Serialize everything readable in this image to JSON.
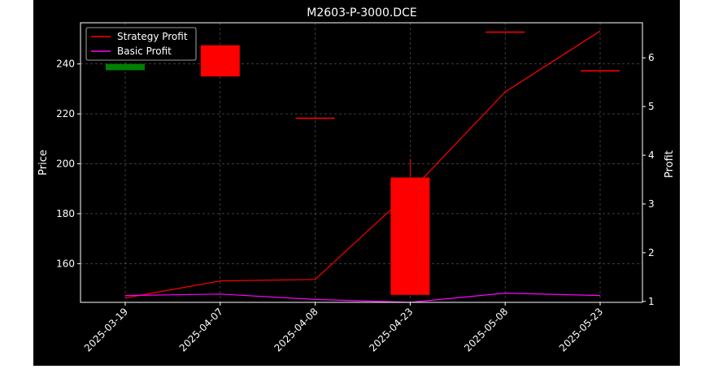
{
  "chart_data": {
    "type": "candlestick+line",
    "title": "M2603-P-3000.DCE",
    "categories": [
      "2025-03-19",
      "2025-04-07",
      "2025-04-08",
      "2025-04-23",
      "2025-05-08",
      "2025-05-23"
    ],
    "candles": [
      {
        "date": "2025-03-19",
        "open": 237.5,
        "close": 240.0,
        "high": 240.0,
        "low": 237.5,
        "color": "#008000"
      },
      {
        "date": "2025-04-07",
        "open": 247.5,
        "close": 235.0,
        "high": 247.5,
        "low": 235.0,
        "color": "#ff0000"
      },
      {
        "date": "2025-04-08",
        "open": 218.5,
        "close": 218.0,
        "high": 218.5,
        "low": 218.0,
        "color": "#ff0000"
      },
      {
        "date": "2025-04-23",
        "open": 194.5,
        "close": 147.5,
        "high": 202.0,
        "low": 147.5,
        "color": "#ff0000"
      },
      {
        "date": "2025-05-08",
        "open": 253.0,
        "close": 252.5,
        "high": 253.0,
        "low": 252.5,
        "color": "#ff0000"
      },
      {
        "date": "2025-05-23",
        "open": 237.5,
        "close": 237.0,
        "high": 237.5,
        "low": 237.0,
        "color": "#ff0000"
      }
    ],
    "series": [
      {
        "name": "Strategy Profit",
        "color": "#ff0000",
        "values": [
          1.07,
          1.42,
          1.45,
          3.25,
          5.3,
          6.55
        ]
      },
      {
        "name": "Basic Profit",
        "color": "#ff00ff",
        "values": [
          1.12,
          1.15,
          1.04,
          0.98,
          1.17,
          1.12
        ]
      }
    ],
    "ylabel": "Price",
    "ylabel_right": "Profit",
    "ylim": [
      144.5,
      256.5
    ],
    "ylim_right": [
      0.98,
      6.72
    ],
    "yticks": [
      160,
      180,
      200,
      220,
      240
    ],
    "yticks_right": [
      1,
      2,
      3,
      4,
      5,
      6
    ],
    "grid": true,
    "legend_position": "top-left"
  }
}
